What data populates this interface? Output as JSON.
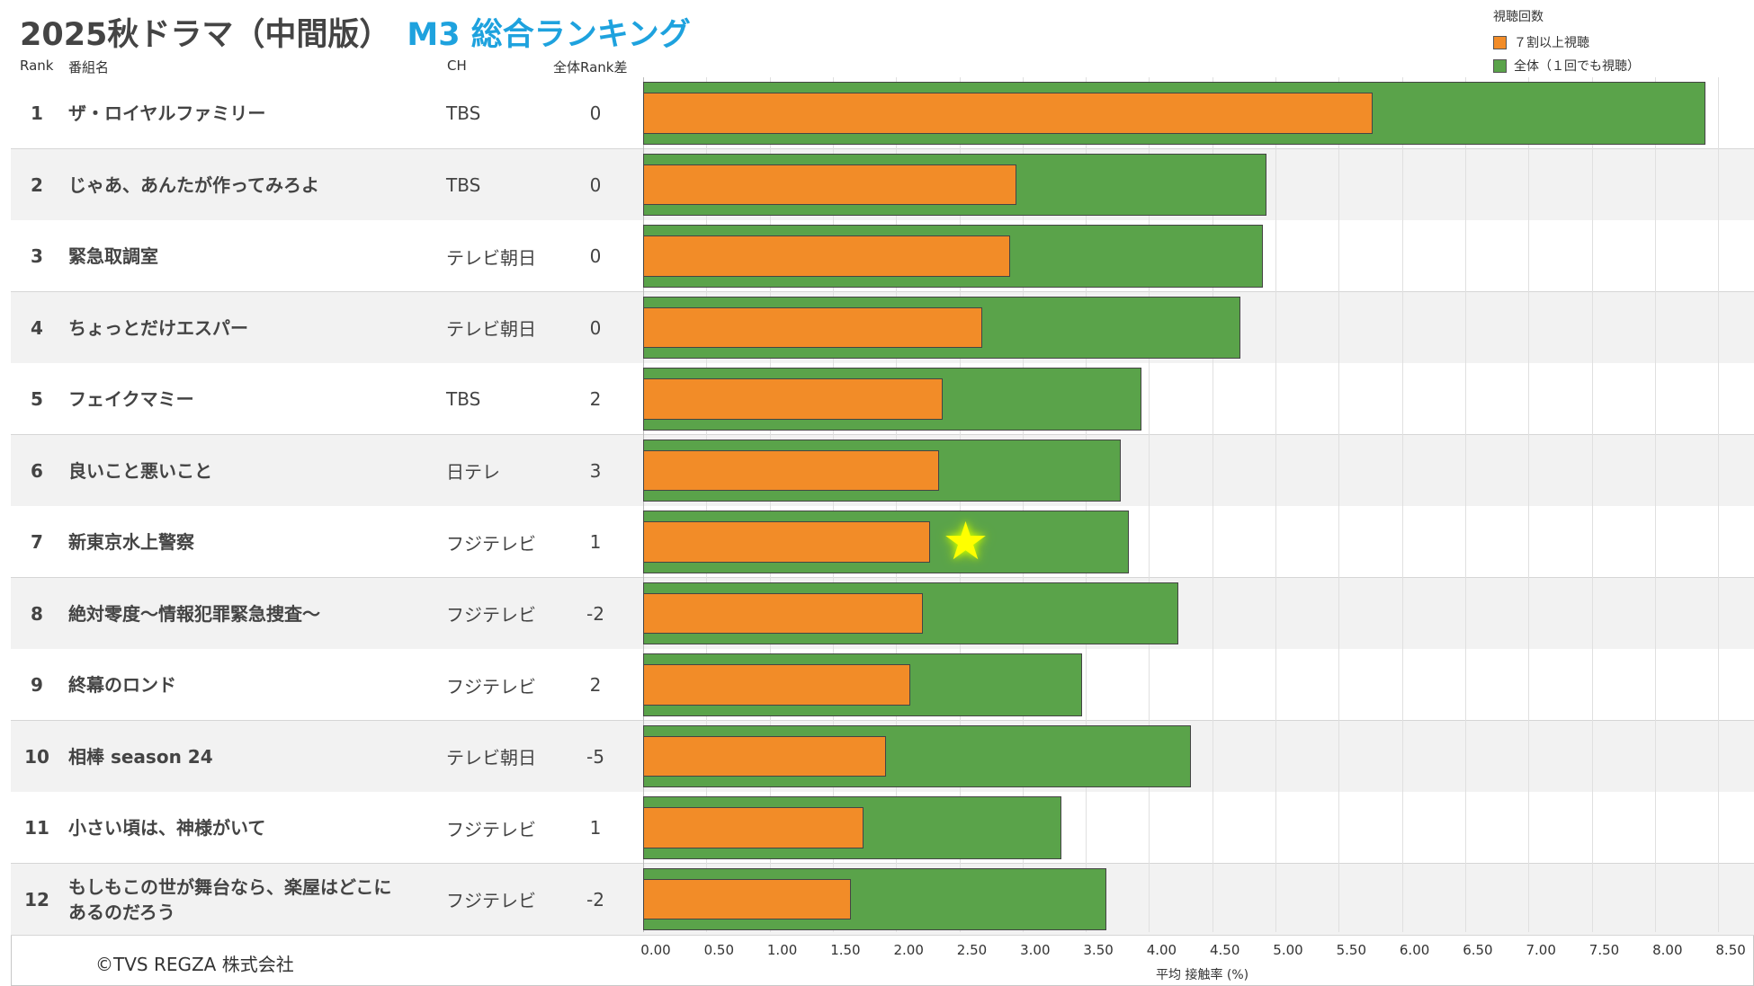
{
  "title": {
    "main": "2025秋ドラマ（中間版）",
    "accent": "M3 総合ランキング"
  },
  "headers": {
    "rank": "Rank",
    "name": "番組名",
    "ch": "CH",
    "diff": "全体Rank差"
  },
  "legend": {
    "title": "視聴回数",
    "items": [
      {
        "label": "７割以上視聴",
        "color": "#f28c28"
      },
      {
        "label": "全体（１回でも視聴）",
        "color": "#5aa34a"
      }
    ]
  },
  "rows": [
    {
      "rank": "1",
      "name": "ザ・ロイヤルファミリー",
      "ch": "TBS",
      "diff": "0"
    },
    {
      "rank": "2",
      "name": "じゃあ、あんたが作ってみろよ",
      "ch": "TBS",
      "diff": "0"
    },
    {
      "rank": "3",
      "name": "緊急取調室",
      "ch": "テレビ朝日",
      "diff": "0"
    },
    {
      "rank": "4",
      "name": "ちょっとだけエスパー",
      "ch": "テレビ朝日",
      "diff": "0"
    },
    {
      "rank": "5",
      "name": "フェイクマミー",
      "ch": "TBS",
      "diff": "2"
    },
    {
      "rank": "6",
      "name": "良いこと悪いこと",
      "ch": "日テレ",
      "diff": "3"
    },
    {
      "rank": "7",
      "name": "新東京水上警察",
      "ch": "フジテレビ",
      "diff": "1"
    },
    {
      "rank": "8",
      "name": "絶対零度～情報犯罪緊急捜査～",
      "ch": "フジテレビ",
      "diff": "-2"
    },
    {
      "rank": "9",
      "name": "終幕のロンド",
      "ch": "フジテレビ",
      "diff": "2"
    },
    {
      "rank": "10",
      "name": "相棒 season 24",
      "ch": "テレビ朝日",
      "diff": "-5"
    },
    {
      "rank": "11",
      "name": "小さい頃は、神様がいて",
      "ch": "フジテレビ",
      "diff": "1"
    },
    {
      "rank": "12",
      "name": "もしもこの世が舞台なら、楽屋はどこにあるのだろう",
      "ch": "フジテレビ",
      "diff": "-2"
    }
  ],
  "chart_data": {
    "type": "bar",
    "orientation": "horizontal",
    "categories": [
      "ザ・ロイヤルファミリー",
      "じゃあ、あんたが作ってみろよ",
      "緊急取調室",
      "ちょっとだけエスパー",
      "フェイクマミー",
      "良いこと悪いこと",
      "新東京水上警察",
      "絶対零度～情報犯罪緊急捜査～",
      "終幕のロンド",
      "相棒 season 24",
      "小さい頃は、神様がいて",
      "もしもこの世が舞台なら、楽屋はどこにあるのだろう"
    ],
    "series": [
      {
        "name": "全体（１回でも視聴）",
        "color": "#5aa34a",
        "values": [
          8.4,
          4.93,
          4.9,
          4.72,
          3.94,
          3.78,
          3.84,
          4.23,
          3.47,
          4.33,
          3.31,
          3.66
        ]
      },
      {
        "name": "７割以上視聴",
        "color": "#f28c28",
        "values": [
          5.77,
          2.95,
          2.9,
          2.68,
          2.37,
          2.34,
          2.27,
          2.21,
          2.11,
          1.92,
          1.74,
          1.64
        ]
      }
    ],
    "xlabel": "平均 接触率 (%)",
    "xlim": [
      0,
      8.6
    ],
    "ticks": [
      "0.00",
      "0.50",
      "1.00",
      "1.50",
      "2.00",
      "2.50",
      "3.00",
      "3.50",
      "4.00",
      "4.50",
      "5.00",
      "5.50",
      "6.00",
      "6.50",
      "7.00",
      "7.50",
      "8.00",
      "8.50"
    ],
    "highlight": {
      "category_index": 6,
      "value": 2.55,
      "marker": "star"
    }
  },
  "copyright": "©TVS REGZA 株式会社"
}
